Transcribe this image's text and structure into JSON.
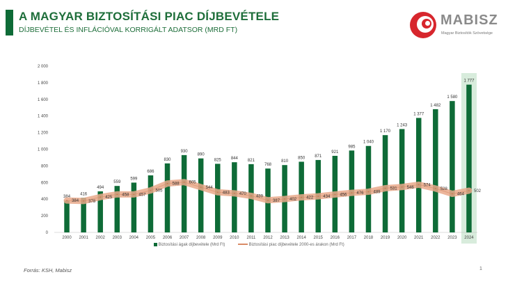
{
  "header": {
    "title": "A MAGYAR BIZTOSÍTÁSI PIAC DÍJBEVÉTELE",
    "subtitle": "DÍJBEVÉTEL ÉS INFLÁCIÓVAL KORRIGÁLT ADATSOR (MRD FT)"
  },
  "logo": {
    "name": "MABISZ",
    "tagline": "Magyar Biztosítók Szövetsége",
    "colors": {
      "red": "#d7262d",
      "gray": "#8a8a8a"
    }
  },
  "footer": {
    "source": "Forrás: KSH, Mabisz",
    "page": "1"
  },
  "colors": {
    "title": "#1e6e3a",
    "bar": "#0e6b37",
    "line": "#e9a98b",
    "highlight": "#d8ecdc"
  },
  "chart_data": {
    "type": "bar",
    "categories": [
      "2000",
      "2001",
      "2002",
      "2003",
      "2004",
      "2005",
      "2006",
      "2007",
      "2008",
      "2009",
      "2010",
      "2011",
      "2012",
      "2013",
      "2014",
      "2015",
      "2016",
      "2017",
      "2018",
      "2019",
      "2020",
      "2021",
      "2022",
      "2023",
      "2024"
    ],
    "series": [
      {
        "name": "Biztosítási ágak díjbevétele (Mrd Ft)",
        "type": "bar",
        "values": [
          384,
          416,
          494,
          559,
          599,
          686,
          830,
          930,
          890,
          825,
          844,
          821,
          768,
          810,
          850,
          871,
          921,
          985,
          1040,
          1170,
          1243,
          1377,
          1482,
          1580,
          1777
        ]
      },
      {
        "name": "Biztosítási piac díjbevétele 2000-es árakon (Mrd Ft)",
        "type": "line",
        "values": [
          384,
          378,
          425,
          458,
          457,
          505,
          588,
          605,
          544,
          483,
          470,
          439,
          387,
          402,
          422,
          434,
          456,
          476,
          489,
          531,
          546,
          574,
          528,
          464,
          502
        ]
      }
    ],
    "highlight_category": "2024",
    "ylim": [
      0,
      2000
    ],
    "yticks": [
      "0",
      "200",
      "400",
      "600",
      "800",
      "1 000",
      "1 200",
      "1 400",
      "1 600",
      "1 800",
      "2 000"
    ],
    "ytick_values": [
      0,
      200,
      400,
      600,
      800,
      1000,
      1200,
      1400,
      1600,
      1800,
      2000
    ],
    "bar_labels": [
      "384",
      "416",
      "494",
      "559",
      "599",
      "686",
      "830",
      "930",
      "890",
      "825",
      "844",
      "821",
      "768",
      "810",
      "850",
      "871",
      "921",
      "985",
      "1 040",
      "1 170",
      "1 243",
      "1 377",
      "1 482",
      "1 580",
      "1 777"
    ],
    "line_labels": [
      "384",
      "378",
      "425",
      "458",
      "457",
      "505",
      "588",
      "605",
      "544",
      "483",
      "470",
      "439",
      "387",
      "402",
      "422",
      "434",
      "456",
      "476",
      "489",
      "531",
      "546",
      "574",
      "528",
      "464",
      "502"
    ],
    "legend_position": "bottom",
    "grid": false
  }
}
